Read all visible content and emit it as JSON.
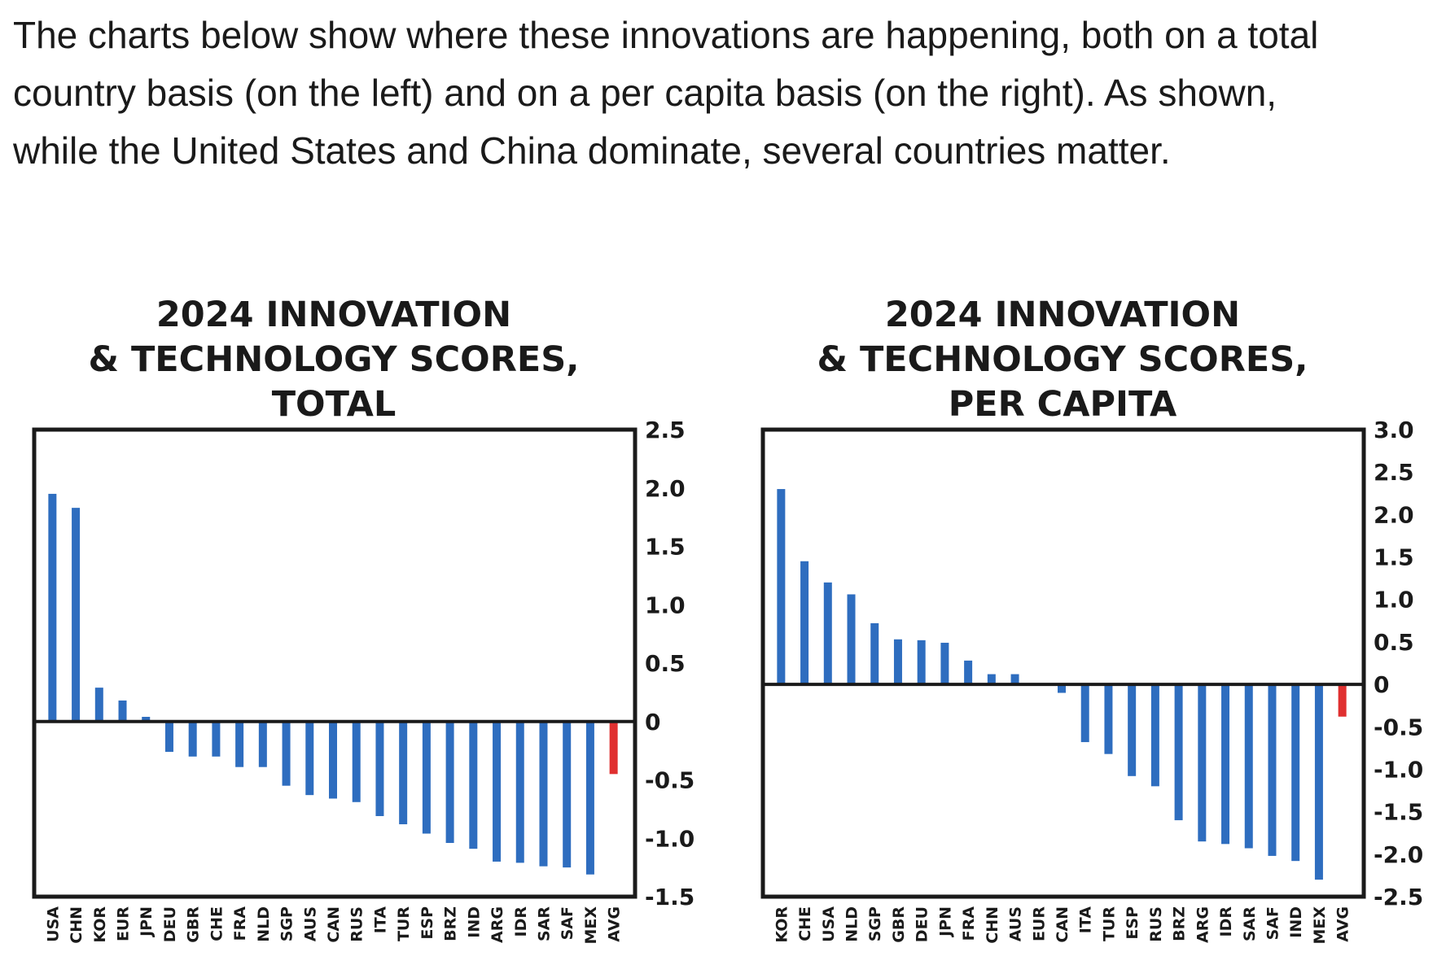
{
  "intro": {
    "line1": "The charts below show where these innovations are happening, both on a total",
    "line2": "country basis (on the left) and on a per capita basis (on the right). As shown,",
    "line3": "while the United States and China dominate, several countries matter."
  },
  "colors": {
    "bar": "#2e6dbf",
    "avg": "#e03030",
    "frame": "#1a1a1a"
  },
  "chart_data": [
    {
      "type": "bar",
      "title_lines": [
        "2024 INNOVATION",
        "& TECHNOLOGY SCORES,",
        "TOTAL"
      ],
      "title": "2024 INNOVATION & TECHNOLOGY SCORES, TOTAL",
      "xlabel": "",
      "ylabel": "",
      "ylim": [
        -1.5,
        2.5
      ],
      "yticks": [
        2.5,
        2.0,
        1.5,
        1.0,
        0.5,
        0,
        -0.5,
        -1.0,
        -1.5
      ],
      "ytick_labels": [
        "2.5",
        "2.0",
        "1.5",
        "1.0",
        "0.5",
        "0",
        "-0.5",
        "-1.0",
        "-1.5"
      ],
      "y_axis_side": "right",
      "grid": false,
      "categories": [
        "USA",
        "CHN",
        "KOR",
        "EUR",
        "JPN",
        "DEU",
        "GBR",
        "CHE",
        "FRA",
        "NLD",
        "SGP",
        "AUS",
        "CAN",
        "RUS",
        "ITA",
        "TUR",
        "ESP",
        "BRZ",
        "IND",
        "ARG",
        "IDR",
        "SAR",
        "SAF",
        "MEX",
        "AVG"
      ],
      "values": [
        1.95,
        1.83,
        0.29,
        0.18,
        0.04,
        -0.26,
        -0.3,
        -0.3,
        -0.39,
        -0.39,
        -0.55,
        -0.63,
        -0.66,
        -0.69,
        -0.81,
        -0.88,
        -0.96,
        -1.04,
        -1.09,
        -1.2,
        -1.21,
        -1.24,
        -1.25,
        -1.31,
        -0.45
      ],
      "highlight": [
        "AVG"
      ]
    },
    {
      "type": "bar",
      "title_lines": [
        "2024 INNOVATION",
        "& TECHNOLOGY SCORES,",
        "PER CAPITA"
      ],
      "title": "2024 INNOVATION & TECHNOLOGY SCORES, PER CAPITA",
      "xlabel": "",
      "ylabel": "",
      "ylim": [
        -2.5,
        3.0
      ],
      "yticks": [
        3.0,
        2.5,
        2.0,
        1.5,
        1.0,
        0.5,
        0,
        -0.5,
        -1.0,
        -1.5,
        -2.0,
        -2.5
      ],
      "ytick_labels": [
        "3.0",
        "2.5",
        "2.0",
        "1.5",
        "1.0",
        "0.5",
        "0",
        "-0.5",
        "-1.0",
        "-1.5",
        "-2.0",
        "-2.5"
      ],
      "y_axis_side": "right",
      "grid": false,
      "categories": [
        "KOR",
        "CHE",
        "USA",
        "NLD",
        "SGP",
        "GBR",
        "DEU",
        "JPN",
        "FRA",
        "CHN",
        "AUS",
        "EUR",
        "CAN",
        "ITA",
        "TUR",
        "ESP",
        "RUS",
        "BRZ",
        "ARG",
        "IDR",
        "SAR",
        "SAF",
        "IND",
        "MEX",
        "AVG"
      ],
      "values": [
        2.3,
        1.45,
        1.2,
        1.06,
        0.72,
        0.53,
        0.52,
        0.49,
        0.28,
        0.12,
        0.12,
        0,
        -0.1,
        -0.68,
        -0.82,
        -1.08,
        -1.2,
        -1.6,
        -1.85,
        -1.88,
        -1.93,
        -2.02,
        -2.08,
        -2.3,
        -0.38
      ],
      "highlight": [
        "AVG"
      ]
    }
  ]
}
